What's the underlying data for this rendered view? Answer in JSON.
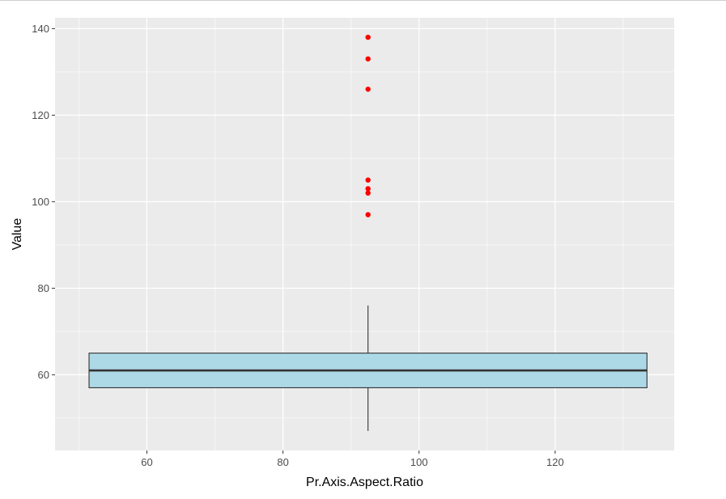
{
  "chart_data": {
    "type": "boxplot",
    "title": "",
    "xlabel": "Pr.Axis.Aspect.Ratio",
    "ylabel": "Value",
    "xlim": [
      46.5,
      137.5
    ],
    "ylim": [
      42.5,
      142.5
    ],
    "x_ticks": [
      60,
      80,
      100,
      120
    ],
    "y_ticks": [
      60,
      80,
      100,
      120,
      140
    ],
    "grid": true,
    "box": {
      "x_center": 92.5,
      "x_range": [
        51.5,
        133.5
      ],
      "q1": 57,
      "median": 61,
      "q3": 65,
      "whisker_low": 47,
      "whisker_high": 76,
      "outliers": [
        97,
        102,
        103,
        105,
        126,
        133,
        138
      ],
      "fill_color": "#add8e6",
      "outlier_color": "#ff0000"
    },
    "panel_color": "#ebebeb"
  }
}
